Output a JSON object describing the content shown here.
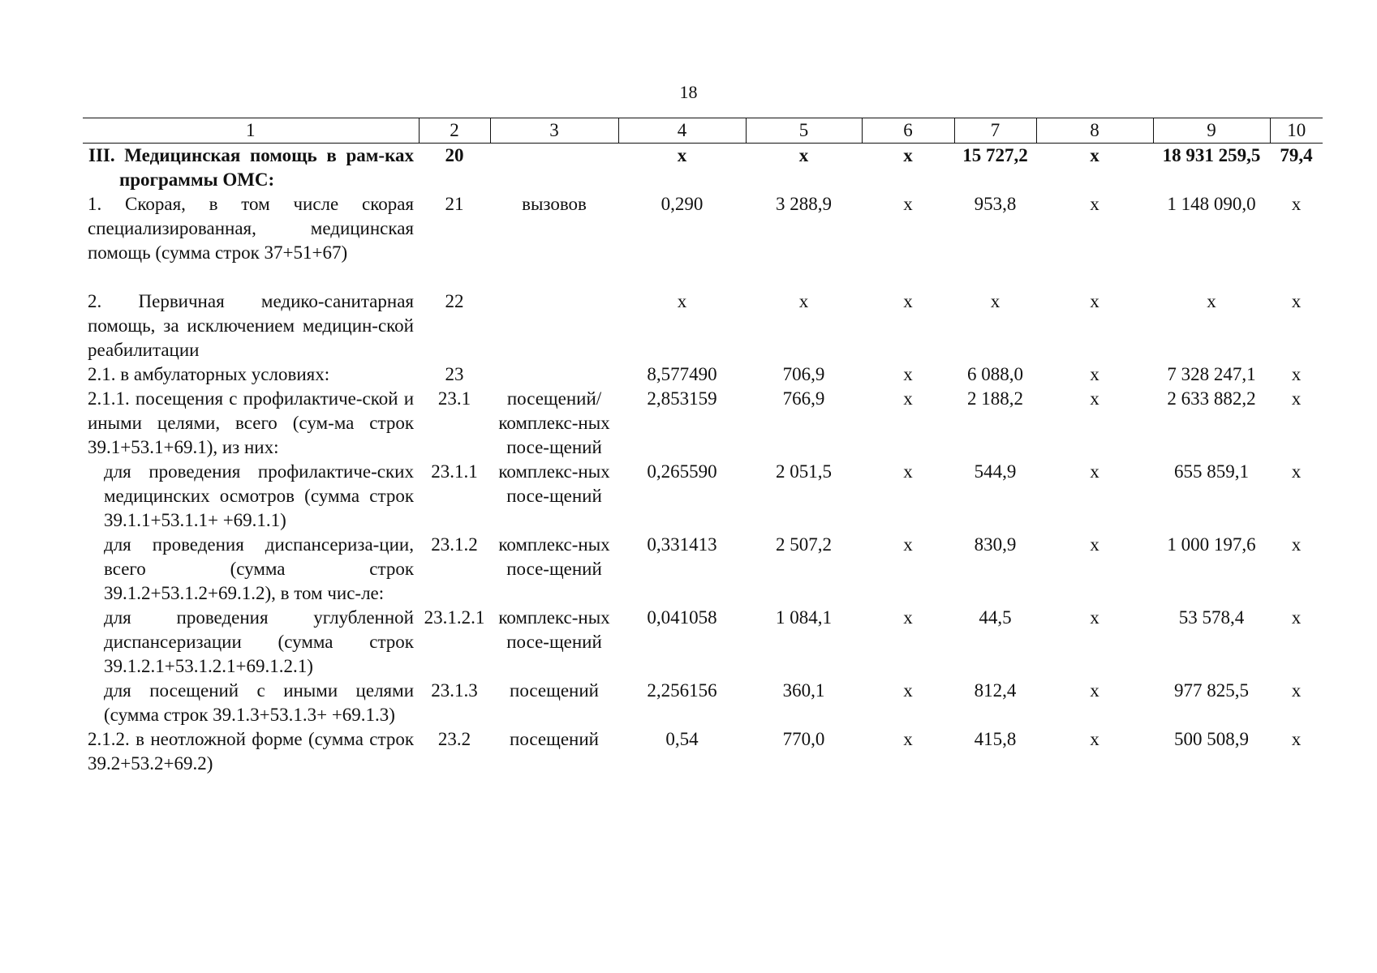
{
  "page_number": "18",
  "header": [
    "1",
    "2",
    "3",
    "4",
    "5",
    "6",
    "7",
    "8",
    "9",
    "10"
  ],
  "rows": [
    {
      "name": "III. Медицинская помощь в рам-ках программы ОМС:",
      "line": "20",
      "unit": "",
      "c4": "х",
      "c5": "х",
      "c6": "х",
      "c7": "15 727,2",
      "c8": "х",
      "c9": "18 931 259,5",
      "c10": "79,4",
      "bold": true
    },
    {
      "name": "1. Скорая, в том числе скорая специализированная, медицинская помощь (сумма строк 37+51+67)",
      "line": "21",
      "unit": "вызовов",
      "c4": "0,290",
      "c5": "3 288,9",
      "c6": "х",
      "c7": "953,8",
      "c8": "х",
      "c9": "1 148 090,0",
      "c10": "х"
    },
    {
      "name": "2. Первичная медико-санитарная помощь, за исключением медицин-ской реабилитации",
      "line": "22",
      "unit": "",
      "c4": "х",
      "c5": "х",
      "c6": "х",
      "c7": "х",
      "c8": "х",
      "c9": "х",
      "c10": "х"
    },
    {
      "name": "2.1. в амбулаторных условиях:",
      "line": "23",
      "unit": "",
      "c4": "8,577490",
      "c5": "706,9",
      "c6": "х",
      "c7": "6 088,0",
      "c8": "х",
      "c9": "7 328 247,1",
      "c10": "х"
    },
    {
      "name": "2.1.1. посещения с профилактиче-ской и иными целями, всего (сум-ма строк 39.1+53.1+69.1), из них:",
      "line": "23.1",
      "unit": "посещений/ комплекс-ных посе-щений",
      "c4": "2,853159",
      "c5": "766,9",
      "c6": "х",
      "c7": "2 188,2",
      "c8": "х",
      "c9": "2 633 882,2",
      "c10": "х"
    },
    {
      "name": "для проведения профилактиче-ских медицинских осмотров (сумма строк 39.1.1+53.1.1+ +69.1.1)",
      "line": "23.1.1",
      "unit": "комплекс-ных посе-щений",
      "c4": "0,265590",
      "c5": "2 051,5",
      "c6": "х",
      "c7": "544,9",
      "c8": "х",
      "c9": "655 859,1",
      "c10": "х"
    },
    {
      "name": "для проведения диспансериза-ции, всего (сумма строк 39.1.2+53.1.2+69.1.2), в том чис-ле:",
      "line": "23.1.2",
      "unit": "комплекс-ных посе-щений",
      "c4": "0,331413",
      "c5": "2 507,2",
      "c6": "х",
      "c7": "830,9",
      "c8": "х",
      "c9": "1 000 197,6",
      "c10": "х"
    },
    {
      "name": "для проведения углубленной диспансеризации (сумма строк 39.1.2.1+53.1.2.1+69.1.2.1)",
      "line": "23.1.2.1",
      "unit": "комплекс-ных посе-щений",
      "c4": "0,041058",
      "c5": "1 084,1",
      "c6": "х",
      "c7": "44,5",
      "c8": "х",
      "c9": "53 578,4",
      "c10": "х"
    },
    {
      "name": "для посещений с иными целями (сумма строк 39.1.3+53.1.3+ +69.1.3)",
      "line": "23.1.3",
      "unit": "посещений",
      "c4": "2,256156",
      "c5": "360,1",
      "c6": "х",
      "c7": "812,4",
      "c8": "х",
      "c9": "977 825,5",
      "c10": "х"
    },
    {
      "name": "2.1.2. в неотложной форме (сумма строк 39.2+53.2+69.2)",
      "line": "23.2",
      "unit": "посещений",
      "c4": "0,54",
      "c5": "770,0",
      "c6": "х",
      "c7": "415,8",
      "c8": "х",
      "c9": "500 508,9",
      "c10": "х"
    }
  ]
}
